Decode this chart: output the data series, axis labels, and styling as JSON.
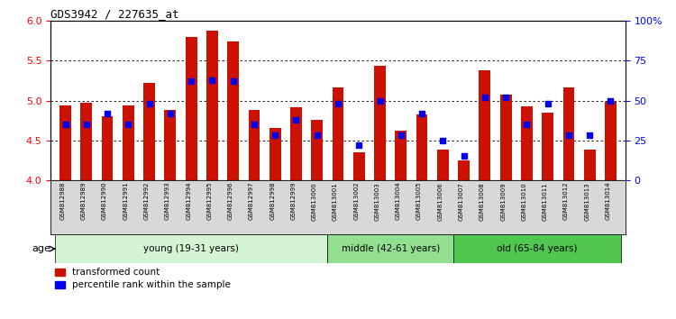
{
  "title": "GDS3942 / 227635_at",
  "samples": [
    "GSM812988",
    "GSM812989",
    "GSM812990",
    "GSM812991",
    "GSM812992",
    "GSM812993",
    "GSM812994",
    "GSM812995",
    "GSM812996",
    "GSM812997",
    "GSM812998",
    "GSM812999",
    "GSM813000",
    "GSM813001",
    "GSM813002",
    "GSM813003",
    "GSM813004",
    "GSM813005",
    "GSM813006",
    "GSM813007",
    "GSM813008",
    "GSM813009",
    "GSM813010",
    "GSM813011",
    "GSM813012",
    "GSM813013",
    "GSM813014"
  ],
  "red_values": [
    4.94,
    4.97,
    4.8,
    4.94,
    5.22,
    4.88,
    5.8,
    5.88,
    5.74,
    4.88,
    4.66,
    4.92,
    4.76,
    5.16,
    4.35,
    5.44,
    4.62,
    4.82,
    4.38,
    4.25,
    5.38,
    5.07,
    4.93,
    4.85,
    5.16,
    4.38,
    4.98
  ],
  "percentile_values": [
    35,
    35,
    42,
    35,
    48,
    42,
    62,
    63,
    62,
    35,
    28,
    38,
    28,
    48,
    22,
    50,
    28,
    42,
    25,
    15,
    52,
    52,
    35,
    48,
    28,
    28,
    50
  ],
  "ylim_left": [
    4.0,
    6.0
  ],
  "ylim_right": [
    0,
    100
  ],
  "yticks_left": [
    4.0,
    4.5,
    5.0,
    5.5,
    6.0
  ],
  "yticks_right": [
    0,
    25,
    50,
    75,
    100
  ],
  "ytick_labels_right": [
    "0",
    "25",
    "50",
    "75",
    "100%"
  ],
  "age_groups": [
    {
      "label": "young (19-31 years)",
      "start": 0,
      "end": 13,
      "color": "#d4f5d4"
    },
    {
      "label": "middle (42-61 years)",
      "start": 13,
      "end": 19,
      "color": "#90e090"
    },
    {
      "label": "old (65-84 years)",
      "start": 19,
      "end": 27,
      "color": "#50c850"
    }
  ],
  "bar_color": "#cc1100",
  "blue_color": "#0000ee",
  "plot_bg": "#ffffff",
  "xtick_bg": "#d8d8d8",
  "bar_width": 0.55
}
